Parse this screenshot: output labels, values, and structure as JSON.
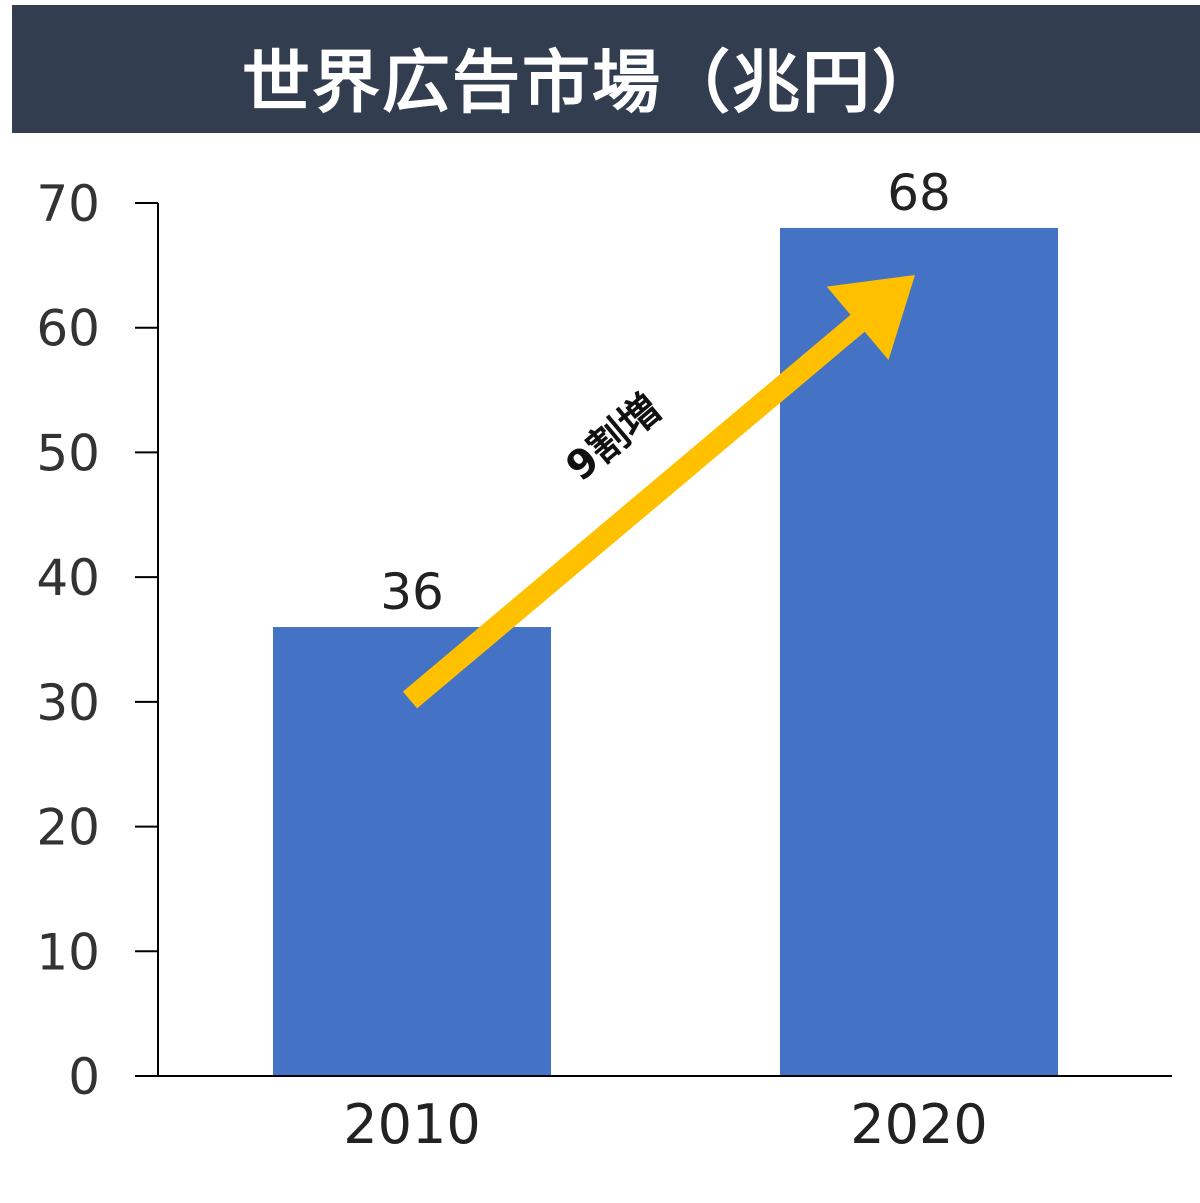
{
  "chart_data": {
    "type": "bar",
    "title": "世界広告市場（兆円）",
    "categories": [
      "2010",
      "2020"
    ],
    "values": [
      36,
      68
    ],
    "data_labels": [
      "36",
      "68"
    ],
    "ylim": [
      0,
      70
    ],
    "yticks": [
      0,
      10,
      20,
      30,
      40,
      50,
      60,
      70
    ],
    "xlabel": "",
    "ylabel": "",
    "grid": false,
    "annotation": {
      "text": "9割増",
      "type": "arrow",
      "from_category": "2010",
      "to_category": "2020"
    },
    "colors": {
      "bar": "#4472c4",
      "arrow": "#ffc000",
      "title_bg": "#333d50"
    }
  }
}
